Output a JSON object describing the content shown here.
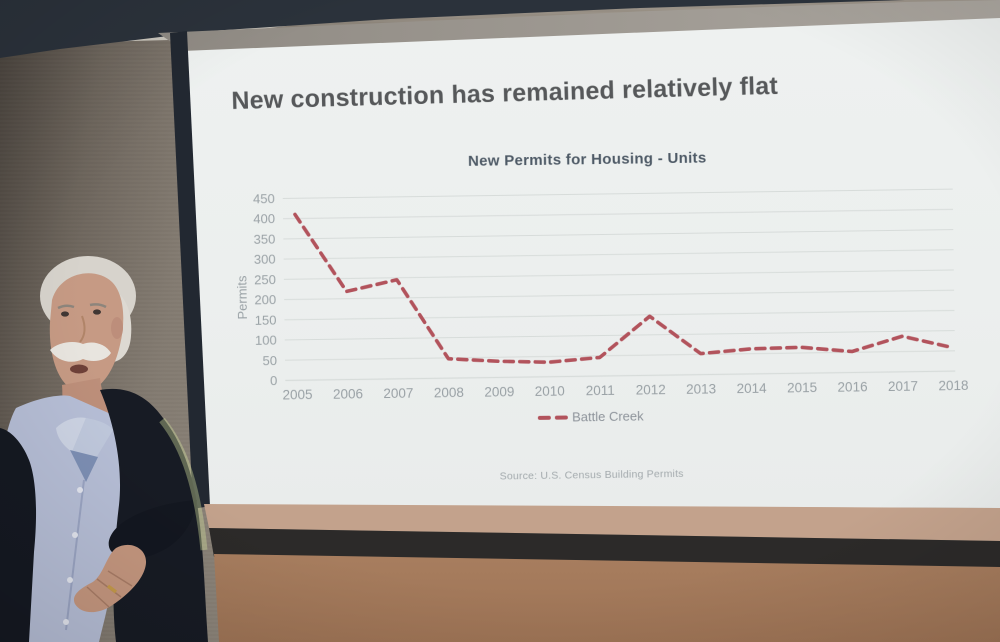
{
  "slide": {
    "title": "New construction has remained relatively flat",
    "source": "Source: U.S. Census Building Permits"
  },
  "chart_data": {
    "type": "line",
    "title": "New Permits for Housing - Units",
    "xlabel": "",
    "ylabel": "Permits",
    "categories": [
      "2005",
      "2006",
      "2007",
      "2008",
      "2009",
      "2010",
      "2011",
      "2012",
      "2013",
      "2014",
      "2015",
      "2016",
      "2017",
      "2018"
    ],
    "series": [
      {
        "name": "Battle Creek",
        "style": "dashed",
        "color": "#b2535c",
        "values": [
          410,
          218,
          245,
          48,
          40,
          36,
          46,
          146,
          52,
          62,
          64,
          52,
          88,
          58
        ]
      }
    ],
    "ylim": [
      0,
      450
    ],
    "ytick_step": 50,
    "grid": true,
    "legend_position": "bottom"
  },
  "colors": {
    "line": "#b2535c",
    "grid": "#d7dcda",
    "tick_text": "#9aa2a6",
    "slide_title_text": "#56585a",
    "chart_title_text": "#4e5a66",
    "legend_text": "#8d939a",
    "source_text": "#a3a9ad",
    "slide_bg": "#edf0ef"
  }
}
